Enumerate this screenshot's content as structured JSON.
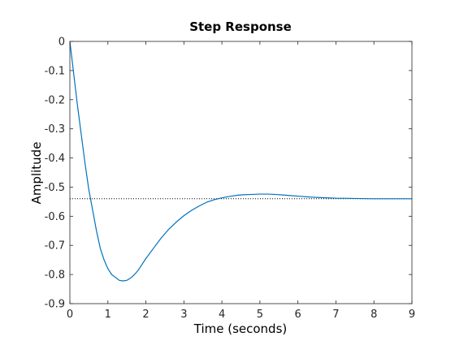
{
  "chart_data": {
    "type": "line",
    "title": "Step Response",
    "xlabel": "Time (seconds)",
    "ylabel": "Amplitude",
    "xlim": [
      0,
      9
    ],
    "ylim": [
      -0.9,
      0
    ],
    "x_ticks": [
      "0",
      "1",
      "2",
      "3",
      "4",
      "5",
      "6",
      "7",
      "8",
      "9"
    ],
    "y_ticks": [
      "0",
      "-0.1",
      "-0.2",
      "-0.3",
      "-0.4",
      "-0.5",
      "-0.6",
      "-0.7",
      "-0.8",
      "-0.9"
    ],
    "grid": false,
    "legend": "none",
    "series": [
      {
        "color": "#0072bd",
        "x": [
          0,
          0.1,
          0.2,
          0.3,
          0.4,
          0.5,
          0.6,
          0.7,
          0.8,
          0.9,
          1.0,
          1.1,
          1.2,
          1.3,
          1.4,
          1.5,
          1.6,
          1.7,
          1.8,
          1.9,
          2.0,
          2.2,
          2.4,
          2.6,
          2.8,
          3.0,
          3.2,
          3.4,
          3.6,
          3.8,
          4.0,
          4.2,
          4.4,
          4.6,
          4.8,
          5.0,
          5.2,
          5.4,
          5.6,
          5.8,
          6.0,
          6.3,
          6.6,
          7.0,
          7.5,
          8.0,
          8.5,
          9.0
        ],
        "y": [
          0,
          -0.11,
          -0.22,
          -0.32,
          -0.42,
          -0.51,
          -0.58,
          -0.65,
          -0.71,
          -0.75,
          -0.78,
          -0.8,
          -0.81,
          -0.82,
          -0.822,
          -0.82,
          -0.812,
          -0.8,
          -0.785,
          -0.765,
          -0.745,
          -0.71,
          -0.675,
          -0.645,
          -0.62,
          -0.598,
          -0.58,
          -0.565,
          -0.552,
          -0.543,
          -0.537,
          -0.532,
          -0.528,
          -0.526,
          -0.525,
          -0.524,
          -0.524,
          -0.525,
          -0.527,
          -0.529,
          -0.531,
          -0.534,
          -0.536,
          -0.538,
          -0.539,
          -0.54,
          -0.54,
          -0.54
        ]
      }
    ],
    "reference_line": {
      "y": -0.54,
      "style": "dotted",
      "color": "#000000"
    }
  }
}
